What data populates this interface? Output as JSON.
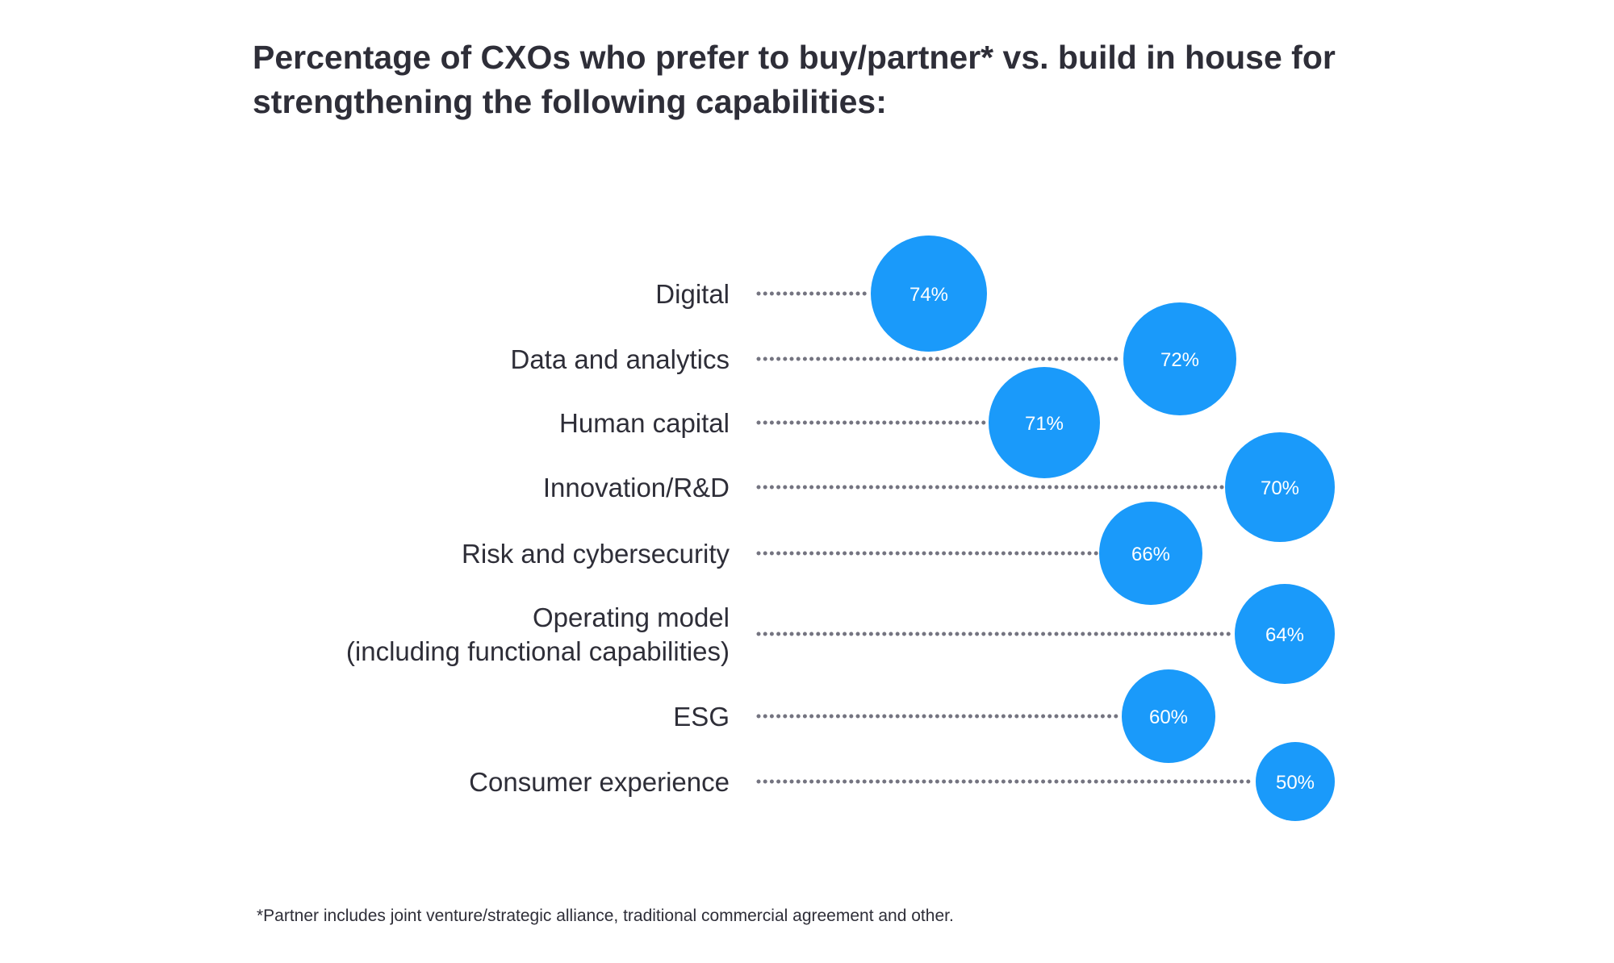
{
  "chart_data": {
    "type": "scatter",
    "title": "Percentage of CXOs who prefer to buy/partner* vs. build in house for strengthening the following capabilities:",
    "categories": [
      [
        "Digital"
      ],
      [
        "Data and analytics"
      ],
      [
        "Human capital"
      ],
      [
        "Innovation/R&D"
      ],
      [
        "Risk and cybersecurity"
      ],
      [
        "Operating model",
        "(including functional capabilities)"
      ],
      [
        "ESG"
      ],
      [
        "Consumer experience"
      ]
    ],
    "values": [
      74,
      72,
      71,
      70,
      66,
      64,
      60,
      50
    ],
    "value_labels": [
      "74%",
      "72%",
      "71%",
      "70%",
      "66%",
      "64%",
      "60%",
      "50%"
    ],
    "unit": "%",
    "footnote": "*Partner includes joint venture/strategic alliance, traditional commercial agreement and other.",
    "colors": {
      "bubble": "#1a9afa",
      "dots": "#747480",
      "text": "#2e2e38"
    }
  }
}
